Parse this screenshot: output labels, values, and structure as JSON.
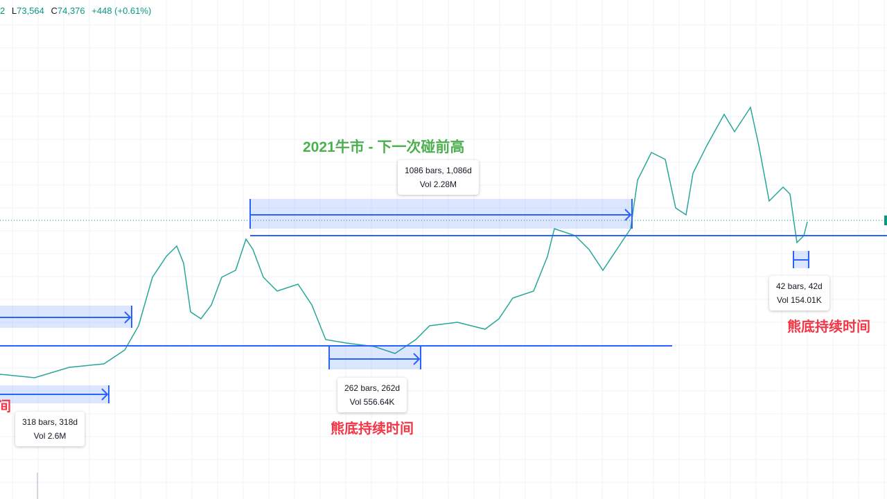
{
  "header": {
    "items": [
      {
        "label": "",
        "value": "2"
      },
      {
        "label": "L",
        "value": "73,564"
      },
      {
        "label": "C",
        "value": "74,376"
      },
      {
        "label": "",
        "value": "+448 (+0.61%)"
      }
    ]
  },
  "annotations": {
    "title": "2021牛市 - 下一次碰前高",
    "bear_left_partial": "间",
    "bear_middle": "熊底持续时间",
    "bear_right": "熊底持续时间"
  },
  "measures": [
    {
      "line1": "1086 bars, 1,086d",
      "line2": "Vol 2.28M"
    },
    {
      "line1": "262 bars, 262d",
      "line2": "Vol 556.64K"
    },
    {
      "line1": "318 bars, 318d",
      "line2": "Vol 2.6M"
    },
    {
      "line1": "42 bars, 42d",
      "line2": "Vol 154.01K"
    }
  ]
}
